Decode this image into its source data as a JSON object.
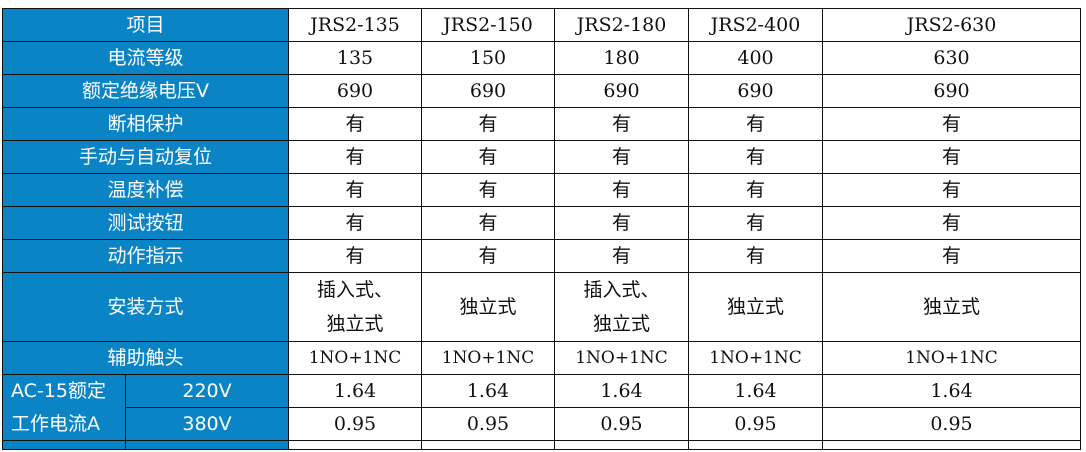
{
  "colors": {
    "label_bg": "#0b84c6",
    "label_text": "#ffffff"
  },
  "header": {
    "label": "项目",
    "models": [
      "JRS2-135",
      "JRS2-150",
      "JRS2-180",
      "JRS2-400",
      "JRS2-630"
    ]
  },
  "rows": [
    {
      "label": "电流等级",
      "values": [
        "135",
        "150",
        "180",
        "400",
        "630"
      ]
    },
    {
      "label": "额定绝缘电压V",
      "values": [
        "690",
        "690",
        "690",
        "690",
        "690"
      ]
    },
    {
      "label": "断相保护",
      "values": [
        "有",
        "有",
        "有",
        "有",
        "有"
      ]
    },
    {
      "label": "手动与自动复位",
      "values": [
        "有",
        "有",
        "有",
        "有",
        "有"
      ]
    },
    {
      "label": "温度补偿",
      "values": [
        "有",
        "有",
        "有",
        "有",
        "有"
      ]
    },
    {
      "label": "测试按钮",
      "values": [
        "有",
        "有",
        "有",
        "有",
        "有"
      ]
    },
    {
      "label": "动作指示",
      "values": [
        "有",
        "有",
        "有",
        "有",
        "有"
      ]
    }
  ],
  "install": {
    "label": "安装方式",
    "values": [
      [
        "插入式、",
        "独立式"
      ],
      [
        "独立式"
      ],
      [
        "插入式、",
        "独立式"
      ],
      [
        "独立式"
      ],
      [
        "独立式"
      ]
    ]
  },
  "aux": {
    "label": "辅助触头",
    "values": [
      "1NO+1NC",
      "1NO+1NC",
      "1NO+1NC",
      "1NO+1NC",
      "1NO+1NC"
    ]
  },
  "ac15": {
    "label_line1": "AC-15额定",
    "label_line2": "工作电流A",
    "sub": [
      {
        "label": "220V",
        "values": [
          "1.64",
          "1.64",
          "1.64",
          "1.64",
          "1.64"
        ]
      },
      {
        "label": "380V",
        "values": [
          "0.95",
          "0.95",
          "0.95",
          "0.95",
          "0.95"
        ]
      }
    ]
  }
}
